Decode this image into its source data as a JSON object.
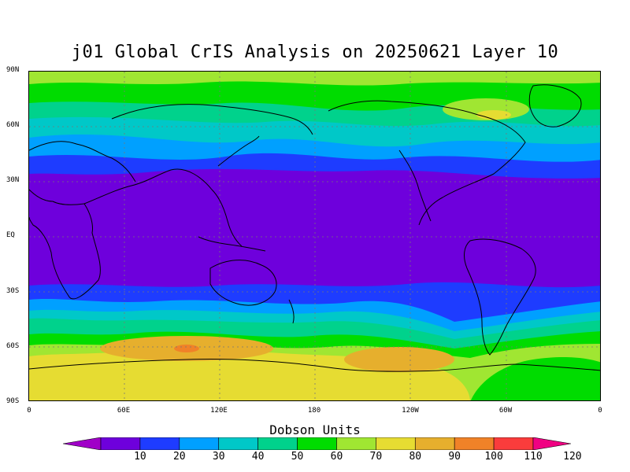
{
  "title": "j01 Global CrIS Analysis on 20250621 Layer 10",
  "y_axis_labels": [
    "90N",
    "60N",
    "30N",
    "EQ",
    "30S",
    "60S",
    "90S"
  ],
  "x_axis_labels": [
    "0",
    "60E",
    "120E",
    "180",
    "120W",
    "60W",
    "0"
  ],
  "colorbar": {
    "title": "Dobson Units",
    "labels": [
      "10",
      "20",
      "30",
      "40",
      "50",
      "60",
      "70",
      "80",
      "90",
      "100",
      "110",
      "120"
    ],
    "colors": [
      "#a000c8",
      "#6e00dc",
      "#1e3cff",
      "#00a0ff",
      "#00c8c8",
      "#00d28c",
      "#00dc00",
      "#a0e632",
      "#e6dc32",
      "#e6af2d",
      "#f08228",
      "#fa3c3c",
      "#f00082"
    ]
  },
  "map": {
    "projection": "cylindrical-equidistant",
    "lon_range": [
      0,
      360
    ],
    "lat_range": [
      -90,
      90
    ],
    "gridlines": "dotted every 30 degrees"
  }
}
